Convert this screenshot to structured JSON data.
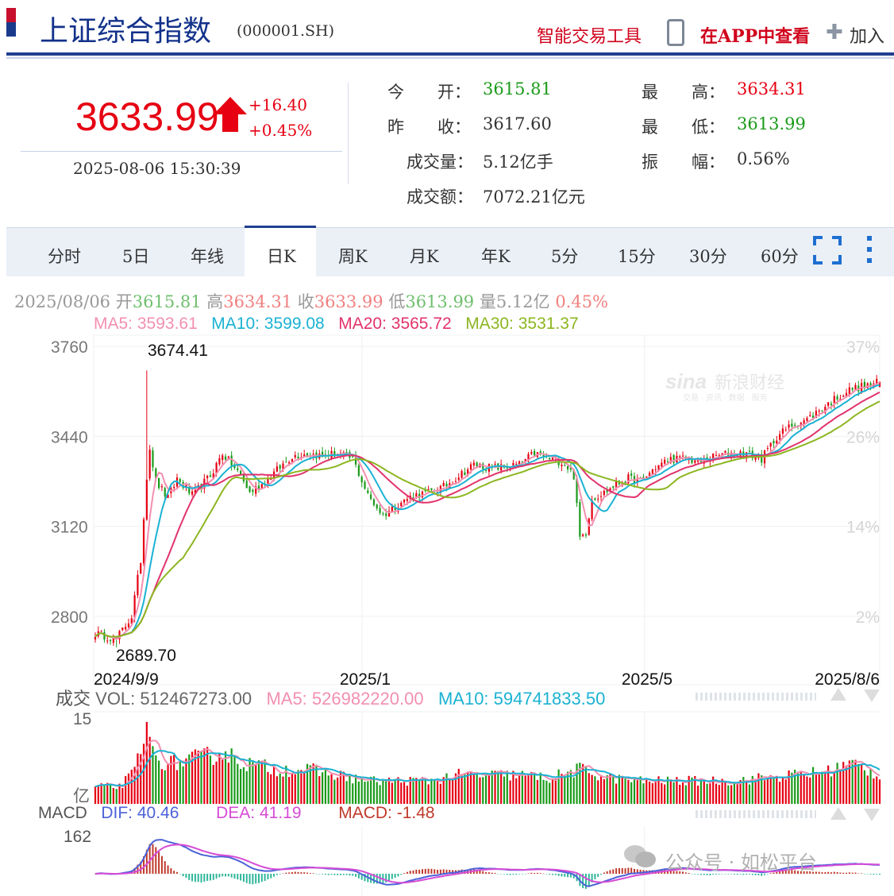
{
  "header": {
    "title": "上证综合指数",
    "code": "(000001.SH)",
    "smart_tool": "智能交易工具",
    "app_view": "在APP中查看",
    "add": "加入"
  },
  "quote": {
    "price": "3633.99",
    "change": "+16.40",
    "change_pct": "+0.45%",
    "time": "2025-08-06 15:30:39",
    "open_label": "今　　开：",
    "open": "3615.81",
    "prev_label": "昨　　收：",
    "prev": "3617.60",
    "vol_label": "成交量：",
    "vol": "5.12亿手",
    "amt_label": "成交额：",
    "amt": "7072.21亿元",
    "high_label": "最　　高：",
    "high": "3634.31",
    "low_label": "最　　低：",
    "low": "3613.99",
    "amp_label": "振　　幅：",
    "amp": "0.56%",
    "colors": {
      "up": "#e60012",
      "down": "#1a9b1a"
    }
  },
  "tabs": [
    "分时",
    "5日",
    "年线",
    "日K",
    "周K",
    "月K",
    "年K",
    "5分",
    "15分",
    "30分",
    "60分"
  ],
  "active_tab": "日K",
  "bar_info": {
    "date": "2025/08/06",
    "open_l": "开",
    "open": "3615.81",
    "high_l": "高",
    "high": "3634.31",
    "close_l": "收",
    "close": "3633.99",
    "low_l": "低",
    "low": "3613.99",
    "vol_l": "量",
    "vol": "5.12亿",
    "pct": "0.45%"
  },
  "ma_info": {
    "ma5": "MA5: 3593.61",
    "ma10": "MA10: 3599.08",
    "ma20": "MA20: 3565.72",
    "ma30": "MA30: 3531.37"
  },
  "vol_info": {
    "label": "成交",
    "vol": "VOL: 512467273.00",
    "ma5": "MA5: 526982220.00",
    "ma10": "MA10: 594741833.50",
    "y_top": "15",
    "unit": "亿"
  },
  "macd_info": {
    "label": "MACD",
    "dif": "DIF: 40.46",
    "dea": "DEA: 41.19",
    "macd": "MACD: -1.48",
    "y_top": "162"
  },
  "watermark": {
    "brand": "新浪财经",
    "sub": "交易 · 资讯 · 数据 · 服务",
    "wechat": "公众号 · 如松平台"
  },
  "chart_data": {
    "type": "candlestick",
    "y_ticks": [
      3760,
      3440,
      3120,
      2800
    ],
    "pct_ticks": [
      "37%",
      "26%",
      "14%",
      "2%"
    ],
    "ylim": [
      2640,
      3790
    ],
    "x_ticks": [
      "2024/9/9",
      "2025/1",
      "2025/5",
      "2025/8/6"
    ],
    "max_label": "3674.41",
    "min_label": "2689.70",
    "keypoints": [
      [
        0,
        2740
      ],
      [
        7,
        2720
      ],
      [
        12,
        2800
      ],
      [
        15,
        3000
      ],
      [
        17,
        3300
      ],
      [
        18,
        3400
      ],
      [
        20,
        3280
      ],
      [
        24,
        3220
      ],
      [
        27,
        3290
      ],
      [
        32,
        3230
      ],
      [
        38,
        3300
      ],
      [
        42,
        3380
      ],
      [
        45,
        3340
      ],
      [
        48,
        3300
      ],
      [
        51,
        3240
      ],
      [
        55,
        3270
      ],
      [
        60,
        3320
      ],
      [
        65,
        3370
      ],
      [
        70,
        3380
      ],
      [
        75,
        3370
      ],
      [
        80,
        3380
      ],
      [
        85,
        3360
      ],
      [
        90,
        3230
      ],
      [
        95,
        3160
      ],
      [
        100,
        3200
      ],
      [
        105,
        3230
      ],
      [
        110,
        3240
      ],
      [
        115,
        3260
      ],
      [
        120,
        3300
      ],
      [
        125,
        3340
      ],
      [
        130,
        3330
      ],
      [
        135,
        3330
      ],
      [
        140,
        3340
      ],
      [
        145,
        3380
      ],
      [
        150,
        3360
      ],
      [
        154,
        3350
      ],
      [
        156,
        3330
      ],
      [
        158,
        3300
      ],
      [
        160,
        3080
      ],
      [
        162,
        3100
      ],
      [
        164,
        3220
      ],
      [
        168,
        3240
      ],
      [
        172,
        3270
      ],
      [
        176,
        3290
      ],
      [
        180,
        3280
      ],
      [
        185,
        3330
      ],
      [
        190,
        3360
      ],
      [
        195,
        3360
      ],
      [
        200,
        3350
      ],
      [
        205,
        3370
      ],
      [
        210,
        3380
      ],
      [
        215,
        3380
      ],
      [
        220,
        3360
      ],
      [
        225,
        3440
      ],
      [
        230,
        3480
      ],
      [
        235,
        3500
      ],
      [
        240,
        3540
      ],
      [
        245,
        3580
      ],
      [
        250,
        3610
      ],
      [
        255,
        3620
      ],
      [
        259,
        3634
      ]
    ],
    "volume_keypoints": [
      [
        0,
        3
      ],
      [
        8,
        3
      ],
      [
        12,
        5
      ],
      [
        17,
        11
      ],
      [
        20,
        8
      ],
      [
        25,
        7
      ],
      [
        35,
        8
      ],
      [
        42,
        9
      ],
      [
        50,
        7
      ],
      [
        60,
        6
      ],
      [
        70,
        6
      ],
      [
        80,
        5
      ],
      [
        90,
        4
      ],
      [
        100,
        4
      ],
      [
        110,
        4
      ],
      [
        120,
        5
      ],
      [
        130,
        5
      ],
      [
        140,
        5
      ],
      [
        150,
        4.5
      ],
      [
        160,
        6
      ],
      [
        170,
        4.5
      ],
      [
        180,
        4
      ],
      [
        190,
        4
      ],
      [
        200,
        4
      ],
      [
        210,
        4
      ],
      [
        220,
        4.5
      ],
      [
        230,
        5
      ],
      [
        240,
        5.5
      ],
      [
        250,
        7
      ],
      [
        259,
        5
      ]
    ]
  }
}
